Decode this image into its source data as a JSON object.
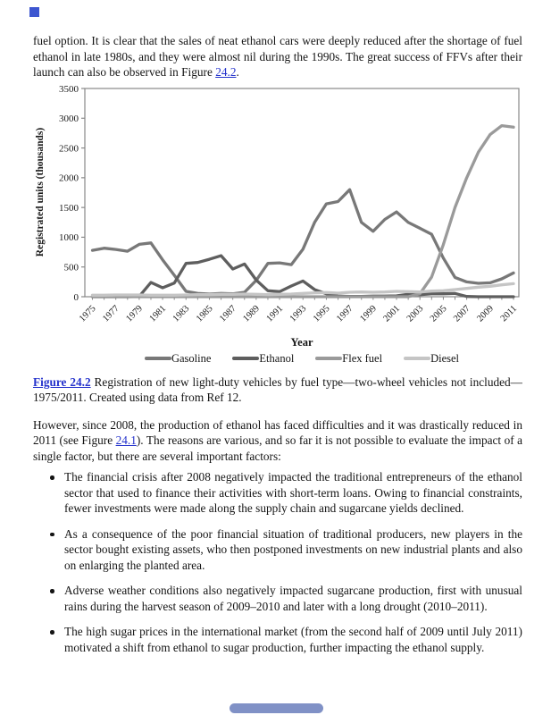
{
  "intro": {
    "text_before_link": "fuel option. It is clear that the sales of neat ethanol cars were deeply reduced after the shortage of fuel ethanol in late 1980s, and they were almost nil during the 1990s. The great success of FFVs after their launch can also be observed in Figure ",
    "link_label": "24.2",
    "text_after_link": "."
  },
  "chart_data": {
    "type": "line",
    "title": "",
    "xlabel": "Year",
    "ylabel": "Registrated units (thousands)",
    "ylim": [
      0,
      3500
    ],
    "ytick_step": 500,
    "grid": false,
    "legend_position": "bottom",
    "x": [
      1975,
      1976,
      1977,
      1978,
      1979,
      1980,
      1981,
      1982,
      1983,
      1984,
      1985,
      1986,
      1987,
      1988,
      1989,
      1990,
      1991,
      1992,
      1993,
      1994,
      1995,
      1996,
      1997,
      1998,
      1999,
      2000,
      2001,
      2002,
      2003,
      2004,
      2005,
      2006,
      2007,
      2008,
      2009,
      2010,
      2011
    ],
    "xtick_labels": [
      "1975",
      "1977",
      "1979",
      "1981",
      "1983",
      "1985",
      "1987",
      "1989",
      "1991",
      "1993",
      "1995",
      "1997",
      "1999",
      "2001",
      "2003",
      "2005",
      "2007",
      "2009",
      "2011"
    ],
    "series": [
      {
        "name": "Gasoline",
        "color": "#787878",
        "values": [
          780,
          815,
          795,
          765,
          880,
          905,
          620,
          360,
          90,
          55,
          45,
          55,
          50,
          75,
          275,
          560,
          570,
          540,
          800,
          1250,
          1560,
          1600,
          1800,
          1250,
          1100,
          1300,
          1425,
          1250,
          1150,
          1050,
          650,
          325,
          250,
          225,
          235,
          300,
          400
        ]
      },
      {
        "name": "Ethanol",
        "color": "#5e5e5e",
        "values": [
          0,
          0,
          0,
          0,
          5,
          240,
          150,
          230,
          560,
          575,
          630,
          690,
          465,
          550,
          280,
          100,
          85,
          180,
          265,
          120,
          50,
          10,
          5,
          5,
          10,
          10,
          15,
          40,
          35,
          50,
          50,
          55,
          5,
          0,
          0,
          0,
          0
        ]
      },
      {
        "name": "Flex fuel",
        "color": "#9a9a9a",
        "values": [
          0,
          0,
          0,
          0,
          0,
          0,
          0,
          0,
          0,
          0,
          0,
          0,
          0,
          0,
          0,
          0,
          0,
          0,
          0,
          0,
          0,
          0,
          0,
          0,
          0,
          0,
          0,
          0,
          50,
          330,
          875,
          1500,
          2000,
          2430,
          2725,
          2875,
          2850
        ]
      },
      {
        "name": "Diesel",
        "color": "#c5c5c5",
        "values": [
          25,
          25,
          30,
          30,
          30,
          25,
          25,
          25,
          30,
          35,
          35,
          40,
          40,
          45,
          40,
          35,
          40,
          45,
          55,
          65,
          70,
          60,
          75,
          80,
          75,
          80,
          90,
          85,
          80,
          95,
          100,
          120,
          140,
          160,
          175,
          200,
          220
        ]
      }
    ],
    "axis_color": "#888888"
  },
  "caption": {
    "link_label": "Figure 24.2",
    "text": " Registration of new light-duty vehicles by fuel type—two-wheel vehicles not included—1975/2011. Created using data from Ref 12."
  },
  "body": {
    "text_before_link": "However, since 2008, the production of ethanol has faced difficulties and it was drastically reduced in 2011 (see Figure ",
    "link_label": "24.1",
    "text_after_link": "). The reasons are various, and so far it is not possible to evaluate the impact of a single factor, but there are several important factors:"
  },
  "bullets": [
    "The financial crisis after 2008 negatively impacted the traditional entrepreneurs of the ethanol sector that used to finance their activities with short-term loans. Owing to financial constraints, fewer investments were made along the supply chain and sugarcane yields declined.",
    "As a consequence of the poor financial situation of traditional producers, new players in the sector bought existing assets, who then postponed investments on new industrial plants and also on enlarging the planted area.",
    "Adverse weather conditions also negatively impacted sugarcane production, first with unusual rains during the harvest season of 2009–2010 and later with a long drought (2010–2011).",
    "The high sugar prices in the international market (from the second half of 2009 until July 2011) motivated a shift from ethanol to sugar production, further impacting the ethanol supply."
  ],
  "ui": {
    "marker_color": "#3d56d0",
    "scroll_thumb_color": "#8091c6"
  }
}
